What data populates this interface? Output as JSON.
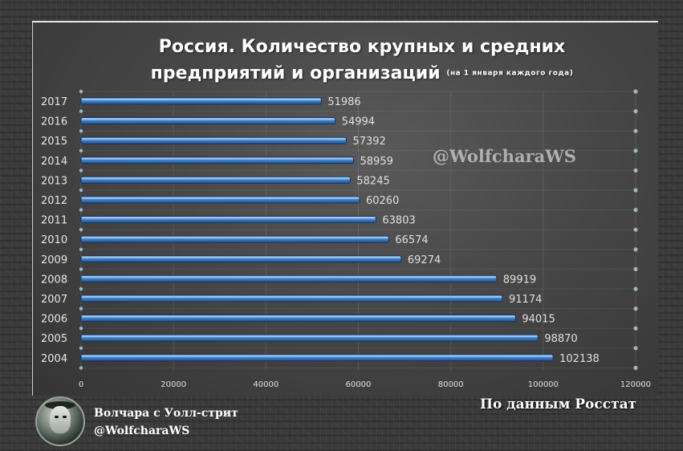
{
  "chart_data": {
    "type": "bar",
    "orientation": "horizontal",
    "title": "Россия. Количество крупных и средних предприятий и организаций",
    "title_line1": "Россия. Количество крупных и средних",
    "title_line2": "предприятий и организаций",
    "subtitle": "(на 1 января каждого года)",
    "categories": [
      "2017",
      "2016",
      "2015",
      "2014",
      "2013",
      "2012",
      "2011",
      "2010",
      "2009",
      "2008",
      "2007",
      "2006",
      "2005",
      "2004"
    ],
    "values": [
      51986,
      54994,
      57392,
      58959,
      58245,
      60260,
      63803,
      66574,
      69274,
      89919,
      91174,
      94015,
      98870,
      102138
    ],
    "xlim": [
      0,
      120000
    ],
    "xticks": [
      0,
      20000,
      40000,
      60000,
      80000,
      100000,
      120000
    ],
    "grid": true,
    "data_labels": true,
    "bar_color": "#4a90d9",
    "label_color": "#e0e0e0"
  },
  "watermark": "@WolfcharaWS",
  "footer": {
    "source": "По данным Росстат",
    "author_name": "Волчара с Уолл-стрит",
    "author_handle": "@WolfcharaWS"
  }
}
